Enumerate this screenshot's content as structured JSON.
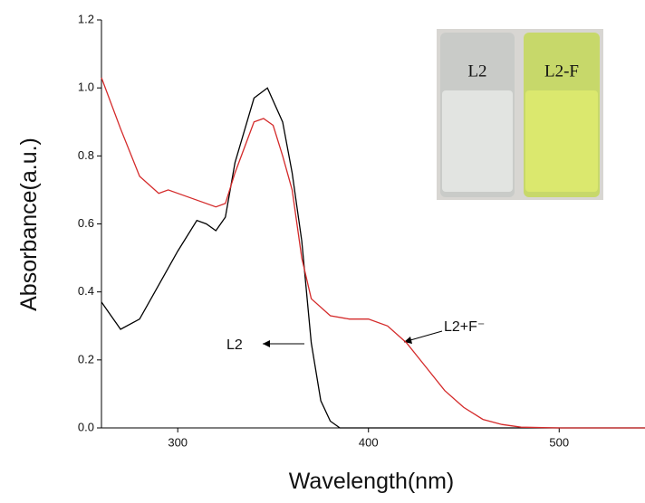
{
  "chart_data": {
    "type": "line",
    "x_label": "Wavelength(nm)",
    "y_label": "Absorbance(a.u.)",
    "xlim": [
      260,
      545
    ],
    "ylim": [
      0,
      1.2
    ],
    "xticks": [
      300,
      400,
      500
    ],
    "yticks": [
      {
        "value": 0,
        "label": "0.0"
      },
      0.2,
      0.4,
      0.6,
      0.8,
      {
        "value": 1,
        "label": "1.0"
      },
      1.2
    ],
    "series": [
      {
        "name": "L2",
        "color": "#000000",
        "x": [
          260,
          270,
          280,
          290,
          300,
          310,
          315,
          320,
          325,
          330,
          340,
          347,
          355,
          360,
          365,
          370,
          375,
          380,
          385,
          390,
          545
        ],
        "values": [
          0.37,
          0.29,
          0.32,
          0.42,
          0.52,
          0.61,
          0.6,
          0.58,
          0.62,
          0.78,
          0.97,
          1.0,
          0.9,
          0.75,
          0.55,
          0.25,
          0.08,
          0.02,
          0.0,
          0.0,
          0.0
        ]
      },
      {
        "name": "L2+F⁻",
        "color": "#d42a2a",
        "x": [
          260,
          270,
          280,
          290,
          295,
          300,
          310,
          320,
          325,
          330,
          340,
          345,
          350,
          355,
          360,
          365,
          370,
          380,
          390,
          400,
          410,
          420,
          430,
          440,
          450,
          460,
          470,
          480,
          500,
          545
        ],
        "values": [
          1.03,
          0.88,
          0.74,
          0.69,
          0.7,
          0.69,
          0.67,
          0.65,
          0.66,
          0.75,
          0.9,
          0.91,
          0.89,
          0.8,
          0.7,
          0.5,
          0.38,
          0.33,
          0.32,
          0.32,
          0.3,
          0.25,
          0.18,
          0.11,
          0.06,
          0.025,
          0.01,
          0.002,
          0.0,
          0.0
        ]
      }
    ],
    "inset_labels": [
      "L2",
      "L2-F"
    ]
  }
}
